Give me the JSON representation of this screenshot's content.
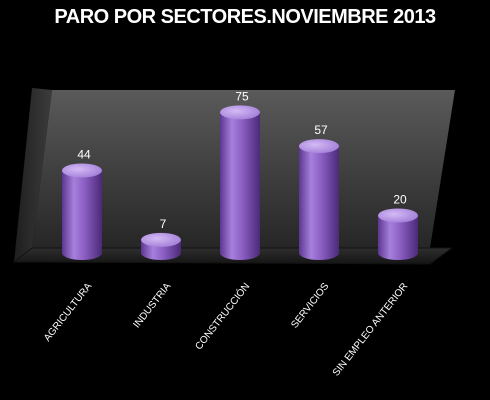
{
  "chart_data": {
    "type": "bar",
    "title": "PARO POR SECTORES.NOVIEMBRE 2013",
    "categories": [
      "AGRICULTURA",
      "INDUSTRIA",
      "CONSTRUCCIÓN",
      "SERVICIOS",
      "SIN EMPLEO  ANTERIOR"
    ],
    "values": [
      44,
      7,
      75,
      57,
      20
    ],
    "ylim": [
      0,
      80
    ],
    "grid": false,
    "legend": "none",
    "colors": {
      "bar": "#8e62c4",
      "bar_light": "#c7a8ef",
      "bar_dark": "#4e2d7a",
      "background": "#000000",
      "wall": "#4a4a4a",
      "floor": "#262626"
    }
  }
}
